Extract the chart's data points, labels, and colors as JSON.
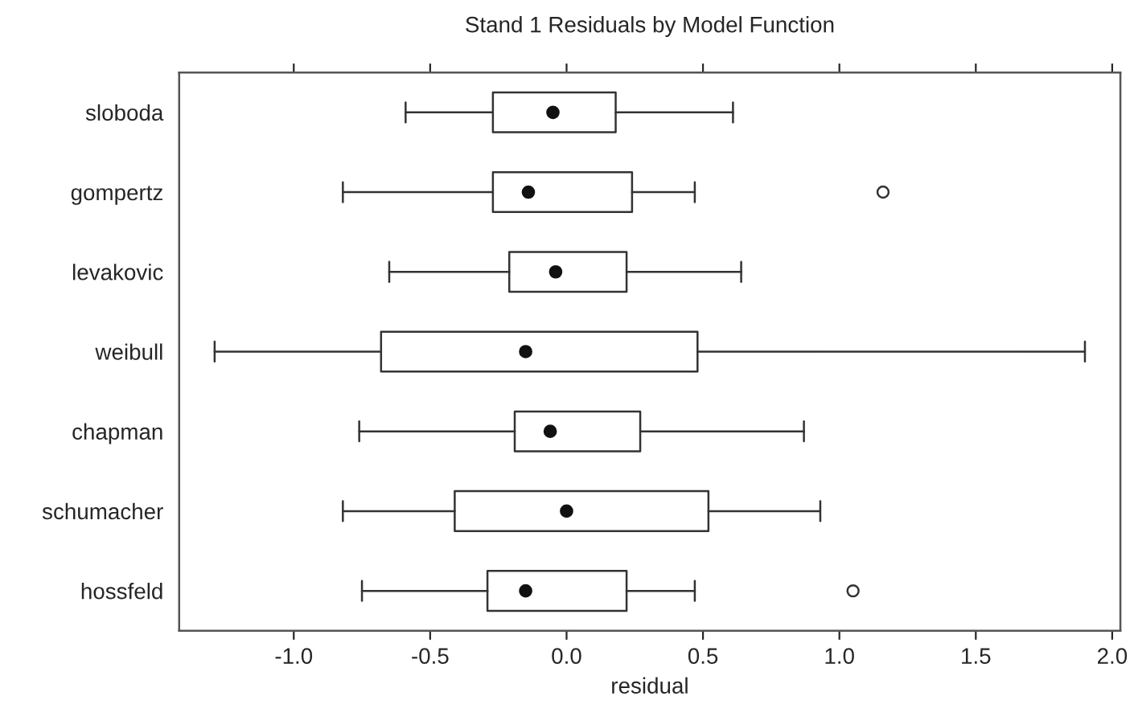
{
  "chart_data": {
    "type": "box",
    "orientation": "horizontal",
    "title": "Stand 1 Residuals by Model Function",
    "xlabel": "residual",
    "categories": [
      "sloboda",
      "gompertz",
      "levakovic",
      "weibull",
      "chapman",
      "schumacher",
      "hossfeld"
    ],
    "boxes": [
      {
        "low": -0.59,
        "q1": -0.27,
        "median": -0.05,
        "q3": 0.18,
        "high": 0.61
      },
      {
        "low": -0.82,
        "q1": -0.27,
        "median": -0.14,
        "q3": 0.24,
        "high": 0.47,
        "outliers": [
          1.16
        ]
      },
      {
        "low": -0.65,
        "q1": -0.21,
        "median": -0.04,
        "q3": 0.22,
        "high": 0.64
      },
      {
        "low": -1.29,
        "q1": -0.68,
        "median": -0.15,
        "q3": 0.48,
        "high": 1.9
      },
      {
        "low": -0.76,
        "q1": -0.19,
        "median": -0.06,
        "q3": 0.27,
        "high": 0.87
      },
      {
        "low": -0.82,
        "q1": -0.41,
        "median": 0.0,
        "q3": 0.52,
        "high": 0.93
      },
      {
        "low": -0.75,
        "q1": -0.29,
        "median": -0.15,
        "q3": 0.22,
        "high": 0.47,
        "outliers": [
          1.05
        ]
      }
    ],
    "color": "#333333",
    "xlim": [
      -1.42,
      2.03
    ],
    "xticks": [
      {
        "value": -1.0,
        "label": "-1.0"
      },
      {
        "value": -0.5,
        "label": "-0.5"
      },
      {
        "value": 0.0,
        "label": "0.0"
      },
      {
        "value": 0.5,
        "label": "0.5"
      },
      {
        "value": 1.0,
        "label": "1.0"
      },
      {
        "value": 1.5,
        "label": "1.5"
      },
      {
        "value": 2.0,
        "label": "2.0"
      }
    ],
    "grid": false,
    "legend": false
  }
}
